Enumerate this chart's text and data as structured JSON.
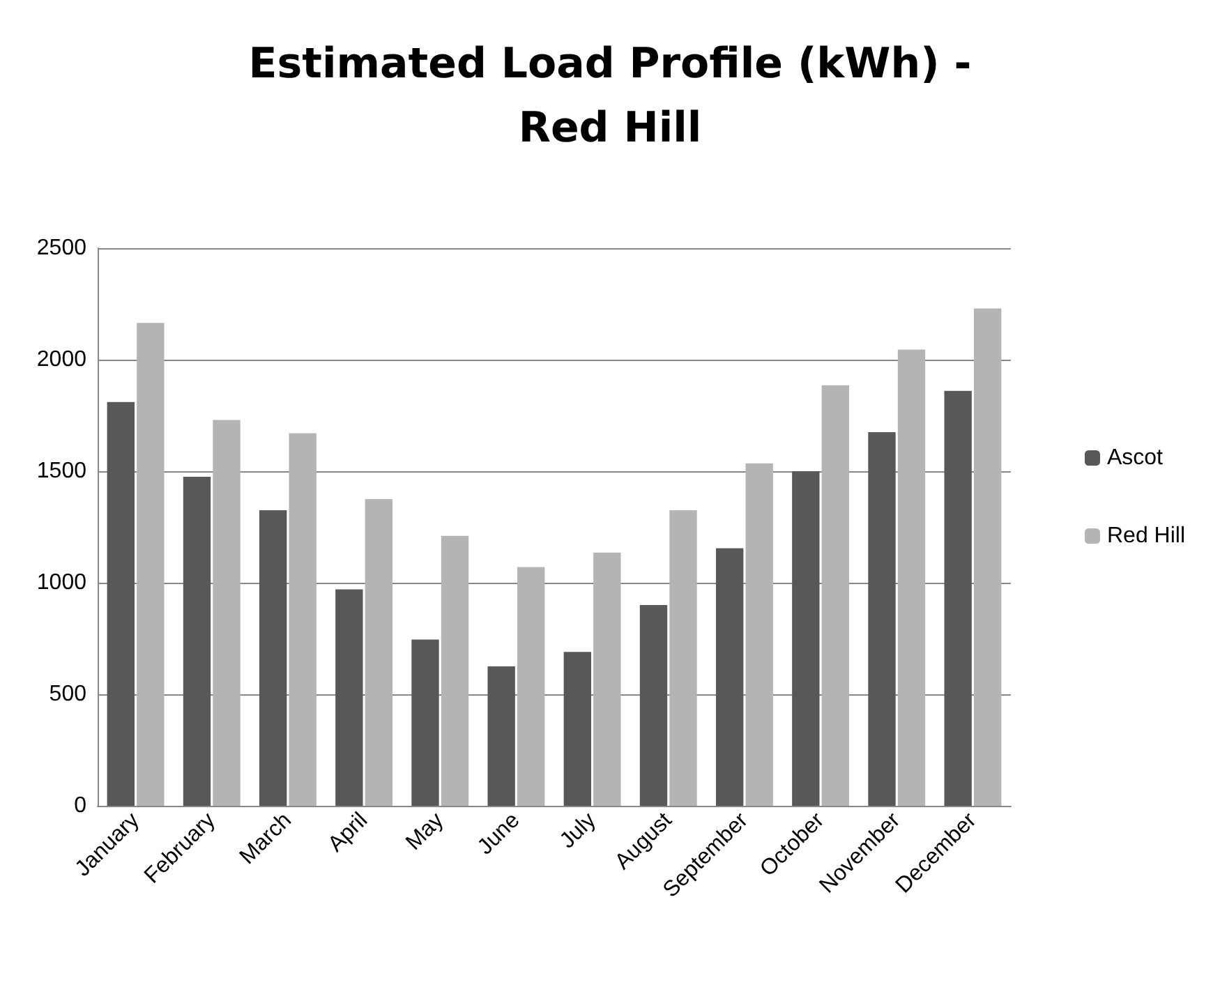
{
  "chart_data": {
    "type": "bar",
    "title": "Estimated Load Profile (kWh) -\nRed Hill",
    "categories": [
      "January",
      "February",
      "March",
      "April",
      "May",
      "June",
      "July",
      "August",
      "September",
      "October",
      "November",
      "December"
    ],
    "series": [
      {
        "name": "Ascot",
        "color": "#585858",
        "values": [
          1810,
          1475,
          1325,
          970,
          745,
          625,
          690,
          900,
          1155,
          1500,
          1675,
          1860
        ]
      },
      {
        "name": "Red Hill",
        "color": "#b4b4b4",
        "values": [
          2165,
          1730,
          1670,
          1375,
          1210,
          1070,
          1135,
          1325,
          1535,
          1885,
          2045,
          2230
        ]
      }
    ],
    "ylim": [
      0,
      2500
    ],
    "yticks": [
      0,
      500,
      1000,
      1500,
      2000,
      2500
    ],
    "grid": "y",
    "legend": "right"
  }
}
